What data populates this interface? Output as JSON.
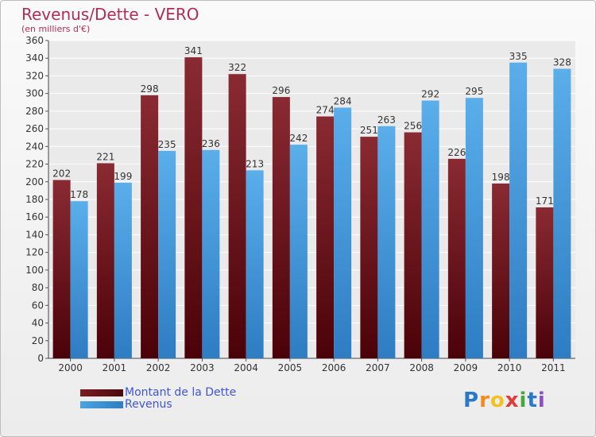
{
  "title": "Revenus/Dette - VERO",
  "subtitle": "(en milliers d'€)",
  "logo": {
    "letters": [
      "P",
      "r",
      "o",
      "x",
      "i",
      "t",
      "i"
    ],
    "colors": [
      "#2a78c8",
      "#f28a1e",
      "#f2c21e",
      "#e23b3b",
      "#4aa63c",
      "#2a78c8",
      "#8a4fc0"
    ]
  },
  "colors": {
    "dette": "#7a1a22",
    "revenus": "#4aa3e0",
    "title": "#b22d54",
    "legend_text": "#3f55d6"
  },
  "chart_data": {
    "type": "bar",
    "title": "Revenus/Dette - VERO",
    "subtitle": "(en milliers d'€)",
    "categories": [
      "2000",
      "2001",
      "2002",
      "2003",
      "2004",
      "2005",
      "2006",
      "2007",
      "2008",
      "2009",
      "2010",
      "2011"
    ],
    "series": [
      {
        "name": "Montant de la Dette",
        "values": [
          202,
          221,
          298,
          341,
          322,
          296,
          274,
          251,
          256,
          226,
          198,
          171
        ]
      },
      {
        "name": "Revenus",
        "values": [
          178,
          199,
          235,
          236,
          213,
          242,
          284,
          263,
          292,
          295,
          335,
          328
        ]
      }
    ],
    "ylim": [
      0,
      360
    ],
    "yticks": [
      0,
      20,
      40,
      60,
      80,
      100,
      120,
      140,
      160,
      180,
      200,
      220,
      240,
      260,
      280,
      300,
      320,
      340,
      360
    ],
    "grid": true,
    "legend": "bottom-left"
  }
}
